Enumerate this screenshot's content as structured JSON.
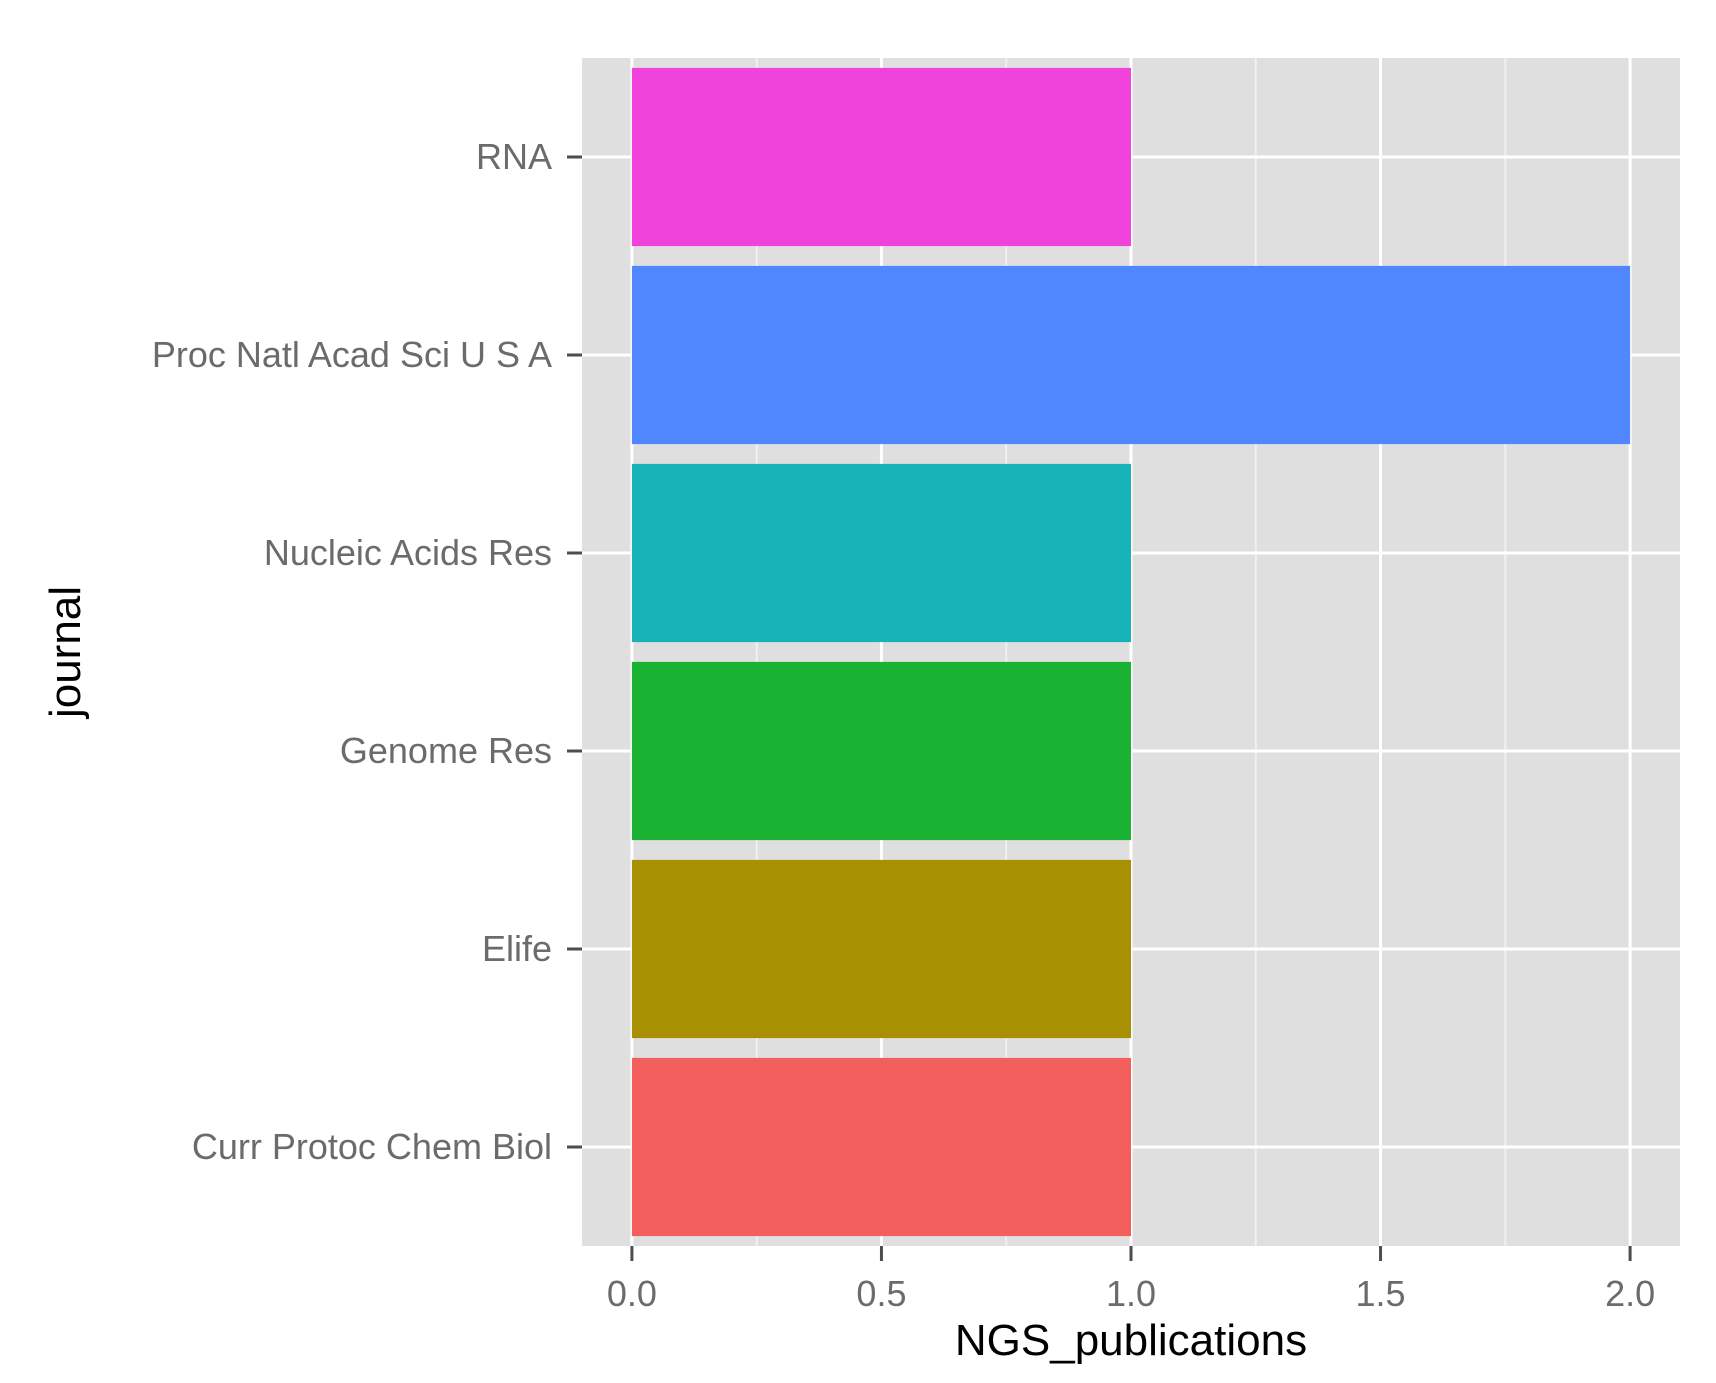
{
  "chart_data": {
    "type": "bar",
    "orientation": "horizontal",
    "xlabel": "NGS_publications",
    "ylabel": "journal",
    "xlim": [
      -0.1,
      2.1
    ],
    "x_ticks": [
      "0.0",
      "0.5",
      "1.0",
      "1.5",
      "2.0"
    ],
    "x_tick_values": [
      0,
      0.5,
      1,
      1.5,
      2
    ],
    "grid": true,
    "legend": "none",
    "categories": [
      "Curr Protoc Chem Biol",
      "Elife",
      "Genome Res",
      "Nucleic Acids Res",
      "Proc Natl Acad Sci U S A",
      "RNA"
    ],
    "values": [
      1,
      1,
      1,
      1,
      2,
      1
    ],
    "colors": [
      "#F25F5C",
      "#A89003",
      "#19B232",
      "#18B3B8",
      "#5087FF",
      "#F043DC"
    ],
    "panel_background": "#DFDFDF",
    "grid_color": "#FFFFFF"
  }
}
